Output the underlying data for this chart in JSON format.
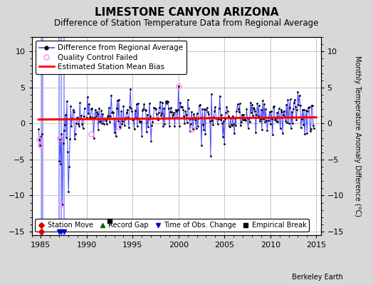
{
  "title": "LIMESTONE CANYON ARIZONA",
  "subtitle": "Difference of Station Temperature Data from Regional Average",
  "ylabel": "Monthly Temperature Anomaly Difference (°C)",
  "xlim": [
    1984.0,
    2015.5
  ],
  "ylim": [
    -15.5,
    12.0
  ],
  "yticks": [
    -15,
    -10,
    -5,
    0,
    5,
    10
  ],
  "xticks": [
    1985,
    1990,
    1995,
    2000,
    2005,
    2010,
    2015
  ],
  "background_color": "#d8d8d8",
  "plot_bg_color": "#ffffff",
  "grid_color": "#bbbbbb",
  "line_color": "#4444ff",
  "dot_color": "#000000",
  "bias_color": "#ff0000",
  "qc_fail_color": "#ff88ff",
  "station_move_color": "#dd0000",
  "obs_change_color": "#0000cc",
  "empirical_break_color": "#000000",
  "record_gap_color": "#006600",
  "title_fontsize": 11,
  "subtitle_fontsize": 8.5,
  "axis_fontsize": 7,
  "tick_fontsize": 8,
  "legend_fontsize": 7.5
}
